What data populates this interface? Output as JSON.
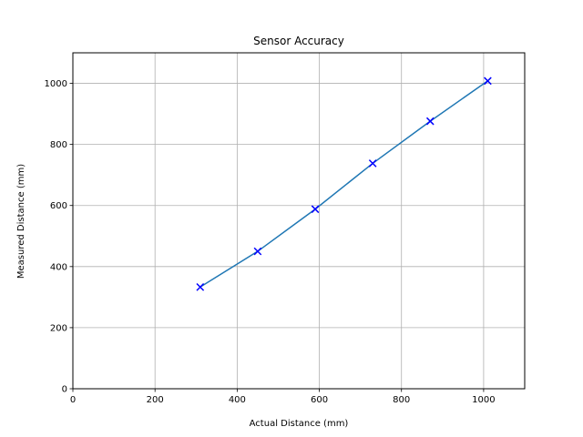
{
  "chart_data": {
    "type": "line",
    "title": "Sensor Accuracy",
    "xlabel": "Actual Distance (mm)",
    "ylabel": "Measured Distance (mm)",
    "xlim": [
      0,
      1100
    ],
    "ylim": [
      0,
      1100
    ],
    "xticks": [
      0,
      200,
      400,
      600,
      800,
      1000
    ],
    "yticks": [
      0,
      200,
      400,
      600,
      800,
      1000
    ],
    "grid": true,
    "series": [
      {
        "kind": "line",
        "color": "#1f77b4",
        "x": [
          310,
          450,
          590,
          730,
          870,
          1010
        ],
        "y": [
          333,
          450,
          588,
          738,
          876,
          1008
        ]
      },
      {
        "kind": "scatter",
        "marker": "x",
        "color": "#0000ff",
        "x": [
          310,
          450,
          590,
          730,
          870,
          1010
        ],
        "y": [
          333,
          450,
          588,
          738,
          876,
          1008
        ]
      }
    ]
  }
}
